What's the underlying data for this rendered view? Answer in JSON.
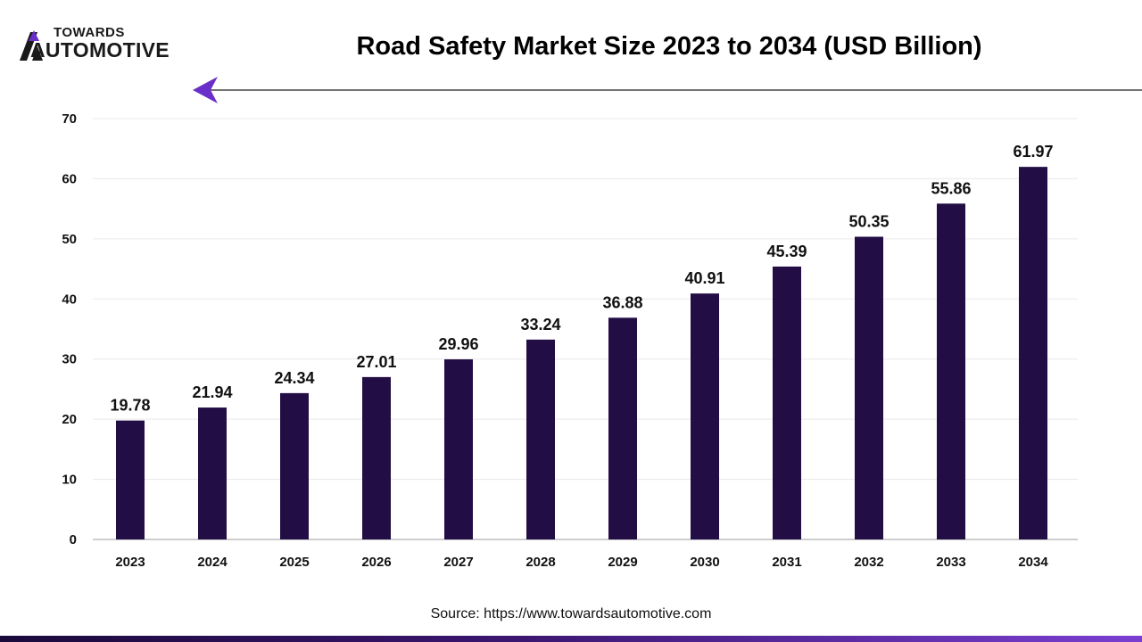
{
  "brand": {
    "name_top": "TOWARDS",
    "name_bottom": "AUTOMOTIVE",
    "logo_icon": "towards-automotive-logo"
  },
  "colors": {
    "bar": "#230d45",
    "accent": "#6a2fc8",
    "grid": "#e9e9e9",
    "axis": "#bdbdbd"
  },
  "source_text": "Source: https://www.towardsautomotive.com",
  "chart_data": {
    "type": "bar",
    "title": "Road Safety Market Size 2023 to 2034 (USD Billion)",
    "xlabel": "",
    "ylabel": "",
    "categories": [
      "2023",
      "2024",
      "2025",
      "2026",
      "2027",
      "2028",
      "2029",
      "2030",
      "2031",
      "2032",
      "2033",
      "2034"
    ],
    "values": [
      19.78,
      21.94,
      24.34,
      27.01,
      29.96,
      33.24,
      36.88,
      40.91,
      45.39,
      50.35,
      55.86,
      61.97
    ],
    "value_labels": [
      "19.78",
      "21.94",
      "24.34",
      "27.01",
      "29.96",
      "33.24",
      "36.88",
      "40.91",
      "45.39",
      "50.35",
      "55.86",
      "61.97"
    ],
    "ylim": [
      0,
      70
    ],
    "yticks": [
      0,
      10,
      20,
      30,
      40,
      50,
      60,
      70
    ],
    "grid": true,
    "legend": "none"
  }
}
